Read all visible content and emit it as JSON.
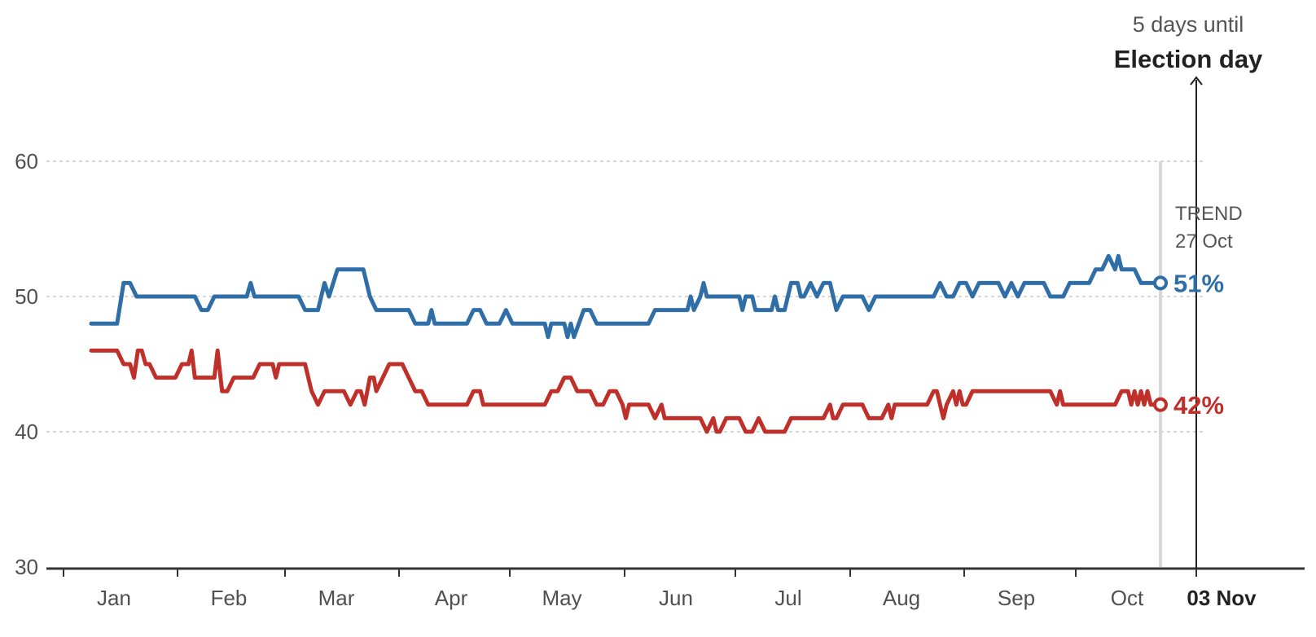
{
  "chart_data": {
    "type": "line",
    "y_ticks": [
      "60",
      "50",
      "40",
      "30"
    ],
    "y_tick_values": [
      60,
      50,
      40,
      30
    ],
    "ylim": [
      30,
      60
    ],
    "grid": "horizontal dotted",
    "x_month_labels": [
      "Jan",
      "Feb",
      "Mar",
      "Apr",
      "May",
      "Jun",
      "Jul",
      "Aug",
      "Sep",
      "Oct"
    ],
    "x_end_label": "03 Nov",
    "annotation": {
      "line1": "5 days until",
      "line2": "Election day"
    },
    "trend_label": {
      "line1": "TREND",
      "line2": "27 Oct"
    },
    "colors": {
      "blue": "#2f6ea6",
      "red": "#c0302a",
      "grid": "#c8c8c8",
      "axis": "#333333",
      "trend_line": "#d8d8d8"
    },
    "series": [
      {
        "color": "blue",
        "end_label": "51%",
        "end_value": 51,
        "points": [
          [
            0,
            48
          ],
          [
            4,
            48
          ],
          [
            5,
            51
          ],
          [
            6,
            51
          ],
          [
            7,
            50
          ],
          [
            16,
            50
          ],
          [
            17,
            49
          ],
          [
            18,
            49
          ],
          [
            19,
            50
          ],
          [
            24,
            50
          ],
          [
            24.6,
            51
          ],
          [
            25.2,
            50
          ],
          [
            32,
            50
          ],
          [
            33,
            49
          ],
          [
            35,
            49
          ],
          [
            36,
            51
          ],
          [
            36.7,
            50
          ],
          [
            38,
            52
          ],
          [
            42,
            52
          ],
          [
            43,
            50
          ],
          [
            44,
            49
          ],
          [
            49,
            49
          ],
          [
            50,
            48
          ],
          [
            52,
            48
          ],
          [
            52.5,
            49
          ],
          [
            53,
            48
          ],
          [
            58,
            48
          ],
          [
            59,
            49
          ],
          [
            60,
            49
          ],
          [
            61,
            48
          ],
          [
            63,
            48
          ],
          [
            64,
            49
          ],
          [
            65,
            48
          ],
          [
            70,
            48
          ],
          [
            70.5,
            47
          ],
          [
            71,
            48
          ],
          [
            73,
            48
          ],
          [
            73.5,
            47
          ],
          [
            74,
            48
          ],
          [
            74.5,
            47
          ],
          [
            76,
            49
          ],
          [
            77,
            49
          ],
          [
            78,
            48
          ],
          [
            86,
            48
          ],
          [
            87,
            49
          ],
          [
            92,
            49
          ],
          [
            92.5,
            50
          ],
          [
            93,
            49
          ],
          [
            94,
            50
          ],
          [
            94.5,
            51
          ],
          [
            95,
            50
          ],
          [
            100,
            50
          ],
          [
            100.5,
            49
          ],
          [
            101,
            50
          ],
          [
            102,
            50
          ],
          [
            102.5,
            49
          ],
          [
            105,
            49
          ],
          [
            105.5,
            50
          ],
          [
            106,
            49
          ],
          [
            107,
            49
          ],
          [
            108,
            51
          ],
          [
            109,
            51
          ],
          [
            109.5,
            50
          ],
          [
            110,
            50
          ],
          [
            111,
            51
          ],
          [
            112,
            50
          ],
          [
            113,
            51
          ],
          [
            114,
            51
          ],
          [
            115,
            49
          ],
          [
            116,
            50
          ],
          [
            119,
            50
          ],
          [
            120,
            49
          ],
          [
            121,
            50
          ],
          [
            130,
            50
          ],
          [
            131,
            51
          ],
          [
            132,
            50
          ],
          [
            133,
            50
          ],
          [
            134,
            51
          ],
          [
            135,
            51
          ],
          [
            136,
            50
          ],
          [
            137,
            51
          ],
          [
            140,
            51
          ],
          [
            141,
            50
          ],
          [
            142,
            51
          ],
          [
            143,
            50
          ],
          [
            144,
            51
          ],
          [
            147,
            51
          ],
          [
            148,
            50
          ],
          [
            150,
            50
          ],
          [
            151,
            51
          ],
          [
            154,
            51
          ],
          [
            155,
            52
          ],
          [
            156,
            52
          ],
          [
            157,
            53
          ],
          [
            158,
            52
          ],
          [
            158.5,
            53
          ],
          [
            159,
            52
          ],
          [
            161,
            52
          ],
          [
            162,
            51
          ],
          [
            165,
            51
          ]
        ]
      },
      {
        "color": "red",
        "end_label": "42%",
        "end_value": 42,
        "points": [
          [
            0,
            46
          ],
          [
            4,
            46
          ],
          [
            5,
            45
          ],
          [
            6,
            45
          ],
          [
            6.6,
            44
          ],
          [
            7.2,
            46
          ],
          [
            7.8,
            46
          ],
          [
            8.4,
            45
          ],
          [
            9,
            45
          ],
          [
            10,
            44
          ],
          [
            13,
            44
          ],
          [
            14,
            45
          ],
          [
            15,
            45
          ],
          [
            15.5,
            46
          ],
          [
            16,
            44
          ],
          [
            19,
            44
          ],
          [
            19.5,
            46
          ],
          [
            20.2,
            43
          ],
          [
            21,
            43
          ],
          [
            22,
            44
          ],
          [
            25,
            44
          ],
          [
            26,
            45
          ],
          [
            28,
            45
          ],
          [
            28.5,
            44
          ],
          [
            29,
            45
          ],
          [
            33,
            45
          ],
          [
            34,
            43
          ],
          [
            35,
            42
          ],
          [
            36,
            43
          ],
          [
            39,
            43
          ],
          [
            40,
            42
          ],
          [
            41,
            43
          ],
          [
            41.6,
            43
          ],
          [
            42.2,
            42
          ],
          [
            43,
            44
          ],
          [
            43.6,
            44
          ],
          [
            44,
            43
          ],
          [
            46,
            45
          ],
          [
            48,
            45
          ],
          [
            49,
            44
          ],
          [
            50,
            43
          ],
          [
            51,
            43
          ],
          [
            52,
            42
          ],
          [
            58,
            42
          ],
          [
            59,
            43
          ],
          [
            60,
            43
          ],
          [
            60.5,
            42
          ],
          [
            69,
            42
          ],
          [
            70,
            42
          ],
          [
            71,
            43
          ],
          [
            72,
            43
          ],
          [
            73,
            44
          ],
          [
            74,
            44
          ],
          [
            75,
            43
          ],
          [
            77,
            43
          ],
          [
            78,
            42
          ],
          [
            79,
            42
          ],
          [
            80,
            43
          ],
          [
            81,
            43
          ],
          [
            82,
            42
          ],
          [
            82.5,
            41
          ],
          [
            83,
            42
          ],
          [
            86,
            42
          ],
          [
            87,
            41
          ],
          [
            88,
            42
          ],
          [
            88.5,
            41
          ],
          [
            94,
            41
          ],
          [
            95,
            40
          ],
          [
            96,
            41
          ],
          [
            96.5,
            40
          ],
          [
            97,
            40
          ],
          [
            98,
            41
          ],
          [
            100,
            41
          ],
          [
            101,
            40
          ],
          [
            102,
            40
          ],
          [
            103,
            41
          ],
          [
            104,
            40
          ],
          [
            107,
            40
          ],
          [
            108,
            41
          ],
          [
            113,
            41
          ],
          [
            114,
            42
          ],
          [
            114.5,
            41
          ],
          [
            115,
            41
          ],
          [
            116,
            42
          ],
          [
            119,
            42
          ],
          [
            120,
            41
          ],
          [
            122,
            41
          ],
          [
            123,
            42
          ],
          [
            123.5,
            41
          ],
          [
            124,
            42
          ],
          [
            129,
            42
          ],
          [
            130,
            43
          ],
          [
            130.5,
            43
          ],
          [
            131,
            42
          ],
          [
            131.5,
            41
          ],
          [
            132,
            42
          ],
          [
            133,
            43
          ],
          [
            133.5,
            42
          ],
          [
            134,
            43
          ],
          [
            134.5,
            42
          ],
          [
            135,
            42
          ],
          [
            136,
            43
          ],
          [
            148,
            43
          ],
          [
            149,
            42
          ],
          [
            149.5,
            43
          ],
          [
            150,
            42
          ],
          [
            158,
            42
          ],
          [
            159,
            43
          ],
          [
            160,
            43
          ],
          [
            160.5,
            42
          ],
          [
            161,
            43
          ],
          [
            161.5,
            42
          ],
          [
            162,
            43
          ],
          [
            162.5,
            42
          ],
          [
            163,
            43
          ],
          [
            163.5,
            42
          ],
          [
            165,
            42
          ]
        ]
      }
    ]
  }
}
